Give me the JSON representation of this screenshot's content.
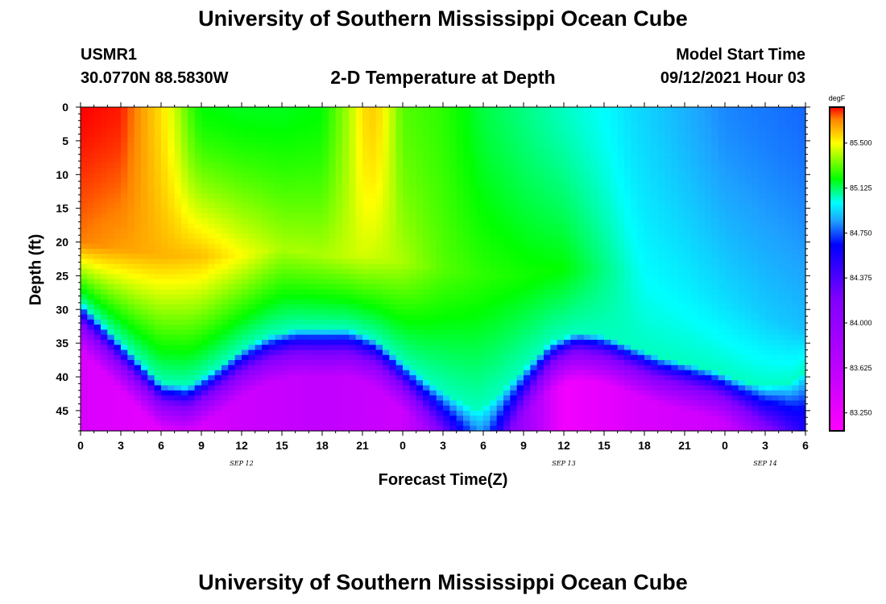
{
  "header": {
    "title": "University of Southern Mississippi Ocean Cube",
    "station": "USMR1",
    "coordinates": "30.0770N  88.5830W",
    "plot_title": "2-D Temperature at Depth",
    "model_label": "Model Start Time",
    "model_time": "09/12/2021 Hour 03"
  },
  "footer": {
    "title": "University of Southern Mississippi Ocean Cube"
  },
  "chart_data": {
    "type": "heatmap",
    "title": "2-D Temperature at Depth",
    "xlabel": "Forecast Time(Z)",
    "ylabel": "Depth (ft)",
    "x_ticks": [
      "0",
      "3",
      "6",
      "9",
      "12",
      "15",
      "18",
      "21",
      "0",
      "3",
      "6",
      "9",
      "12",
      "15",
      "18",
      "21",
      "0",
      "3",
      "6"
    ],
    "x_tick_hours": [
      0,
      3,
      6,
      9,
      12,
      15,
      18,
      21,
      24,
      27,
      30,
      33,
      36,
      39,
      42,
      45,
      48,
      51,
      54
    ],
    "date_labels": [
      {
        "label": "SEP 12",
        "hour": 12
      },
      {
        "label": "SEP 13",
        "hour": 36
      },
      {
        "label": "SEP 14",
        "hour": 51
      }
    ],
    "y_ticks": [
      0,
      5,
      10,
      15,
      20,
      25,
      30,
      35,
      40,
      45
    ],
    "xlim": [
      0,
      54
    ],
    "ylim": [
      0,
      48
    ],
    "y_inverted": true,
    "colorbar": {
      "unit": "degF",
      "range": [
        83.1,
        85.8
      ],
      "ticks": [
        "85.500",
        "85.125",
        "84.750",
        "84.375",
        "84.000",
        "83.625",
        "83.250"
      ],
      "tick_values": [
        85.5,
        85.125,
        84.75,
        84.375,
        84.0,
        83.625,
        83.25
      ],
      "colors": [
        {
          "v": 83.1,
          "c": "#ff00ff"
        },
        {
          "v": 83.6,
          "c": "#c000ff"
        },
        {
          "v": 84.2,
          "c": "#8000ff"
        },
        {
          "v": 84.65,
          "c": "#0000ff"
        },
        {
          "v": 84.85,
          "c": "#1ea0ff"
        },
        {
          "v": 85.0,
          "c": "#00ffff"
        },
        {
          "v": 85.2,
          "c": "#00ff00"
        },
        {
          "v": 85.5,
          "c": "#ffff00"
        },
        {
          "v": 85.7,
          "c": "#ff8000"
        },
        {
          "v": 85.8,
          "c": "#ff0000"
        }
      ]
    },
    "surface_temp_by_hour": [
      [
        0,
        85.8
      ],
      [
        3,
        85.78
      ],
      [
        5,
        85.62
      ],
      [
        6,
        85.55
      ],
      [
        7,
        85.45
      ],
      [
        8,
        85.3
      ],
      [
        9,
        85.2
      ],
      [
        12,
        85.18
      ],
      [
        15,
        85.18
      ],
      [
        18,
        85.2
      ],
      [
        20,
        85.4
      ],
      [
        21,
        85.55
      ],
      [
        22,
        85.58
      ],
      [
        23,
        85.45
      ],
      [
        24,
        85.3
      ],
      [
        27,
        85.25
      ],
      [
        30,
        85.15
      ],
      [
        33,
        85.1
      ],
      [
        36,
        85.05
      ],
      [
        39,
        85.0
      ],
      [
        41,
        84.95
      ],
      [
        45,
        84.88
      ],
      [
        48,
        84.82
      ],
      [
        51,
        84.8
      ],
      [
        54,
        84.78
      ]
    ],
    "mixed_layer_depth_ft_by_hour": [
      [
        0,
        20
      ],
      [
        3,
        21
      ],
      [
        6,
        22
      ],
      [
        9,
        22
      ],
      [
        12,
        22
      ],
      [
        15,
        21
      ],
      [
        18,
        22
      ],
      [
        21,
        22
      ],
      [
        24,
        23
      ],
      [
        27,
        24
      ],
      [
        30,
        25
      ],
      [
        33,
        25
      ],
      [
        36,
        24
      ],
      [
        39,
        24
      ],
      [
        42,
        25
      ],
      [
        45,
        27
      ],
      [
        48,
        29
      ],
      [
        51,
        31
      ],
      [
        54,
        33
      ]
    ],
    "thermocline_depth_ft_by_hour": [
      [
        0,
        32
      ],
      [
        2,
        36
      ],
      [
        4,
        40
      ],
      [
        6,
        44
      ],
      [
        8,
        44.5
      ],
      [
        10,
        42
      ],
      [
        12,
        39
      ],
      [
        14,
        37
      ],
      [
        16,
        36
      ],
      [
        18,
        36
      ],
      [
        20,
        36
      ],
      [
        22,
        37.5
      ],
      [
        24,
        41
      ],
      [
        26,
        44
      ],
      [
        28,
        46.5
      ],
      [
        29.5,
        48
      ],
      [
        31,
        46
      ],
      [
        33,
        42
      ],
      [
        35,
        38
      ],
      [
        37,
        36.5
      ],
      [
        39,
        37
      ],
      [
        41,
        38.5
      ],
      [
        43,
        40
      ],
      [
        45,
        41
      ],
      [
        47,
        42
      ],
      [
        49,
        43.5
      ],
      [
        51,
        44.5
      ],
      [
        53,
        44
      ],
      [
        54,
        42
      ]
    ],
    "mid_layer_temp_ft_25": [
      [
        0,
        85.7
      ],
      [
        3,
        85.65
      ],
      [
        6,
        85.62
      ],
      [
        9,
        85.6
      ],
      [
        12,
        85.5
      ],
      [
        15,
        85.4
      ],
      [
        18,
        85.4
      ],
      [
        21,
        85.45
      ],
      [
        24,
        85.4
      ],
      [
        27,
        85.3
      ],
      [
        30,
        85.25
      ],
      [
        33,
        85.22
      ],
      [
        36,
        85.2
      ],
      [
        39,
        85.1
      ],
      [
        42,
        85.0
      ],
      [
        45,
        84.98
      ],
      [
        48,
        84.95
      ],
      [
        51,
        84.92
      ],
      [
        54,
        84.9
      ]
    ],
    "bottom_temp_by_hour": [
      [
        0,
        83.4
      ],
      [
        6,
        83.3
      ],
      [
        12,
        83.5
      ],
      [
        18,
        83.6
      ],
      [
        24,
        83.5
      ],
      [
        30,
        84.7
      ],
      [
        36,
        83.2
      ],
      [
        42,
        83.4
      ],
      [
        48,
        83.5
      ],
      [
        54,
        84.6
      ]
    ]
  }
}
